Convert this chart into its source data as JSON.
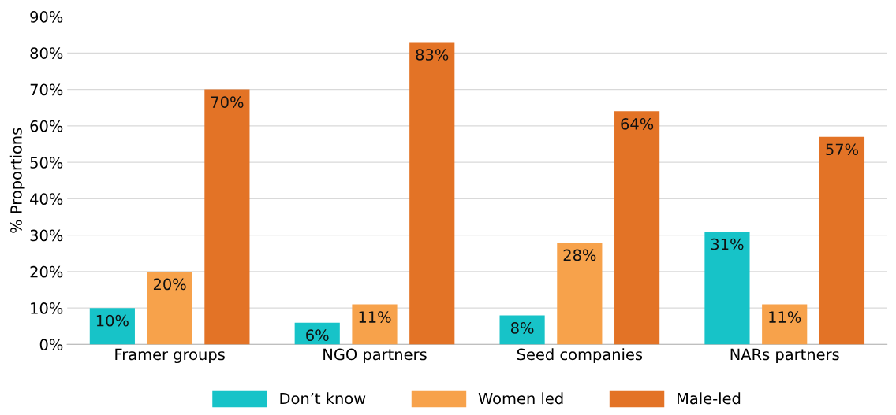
{
  "chart_data": {
    "type": "bar",
    "ylabel": "% Proportions",
    "categories": [
      "Framer groups",
      "NGO partners",
      "Seed companies",
      "NARs partners"
    ],
    "series": [
      {
        "name": "Don’t know",
        "color": "#17c3c8",
        "values": [
          10,
          6,
          8,
          31
        ],
        "value_labels": [
          "10%",
          "6%",
          "8%",
          "31%"
        ]
      },
      {
        "name": "Women led",
        "color": "#f7a24b",
        "values": [
          20,
          11,
          28,
          11
        ],
        "value_labels": [
          "20%",
          "11%",
          "28%",
          "11%"
        ]
      },
      {
        "name": "Male-led",
        "color": "#e37326",
        "values": [
          70,
          83,
          64,
          57
        ],
        "value_labels": [
          "70%",
          "83%",
          "64%",
          "57%"
        ]
      }
    ],
    "ylim": [
      0,
      90
    ],
    "yticks": [
      {
        "value": 0,
        "label": "0%"
      },
      {
        "value": 10,
        "label": "10%"
      },
      {
        "value": 20,
        "label": "20%"
      },
      {
        "value": 30,
        "label": "30%"
      },
      {
        "value": 40,
        "label": "40%"
      },
      {
        "value": 50,
        "label": "50%"
      },
      {
        "value": 60,
        "label": "60%"
      },
      {
        "value": 70,
        "label": "70%"
      },
      {
        "value": 80,
        "label": "80%"
      },
      {
        "value": 90,
        "label": "90%"
      }
    ],
    "grid": "y",
    "legend": "bottom"
  }
}
